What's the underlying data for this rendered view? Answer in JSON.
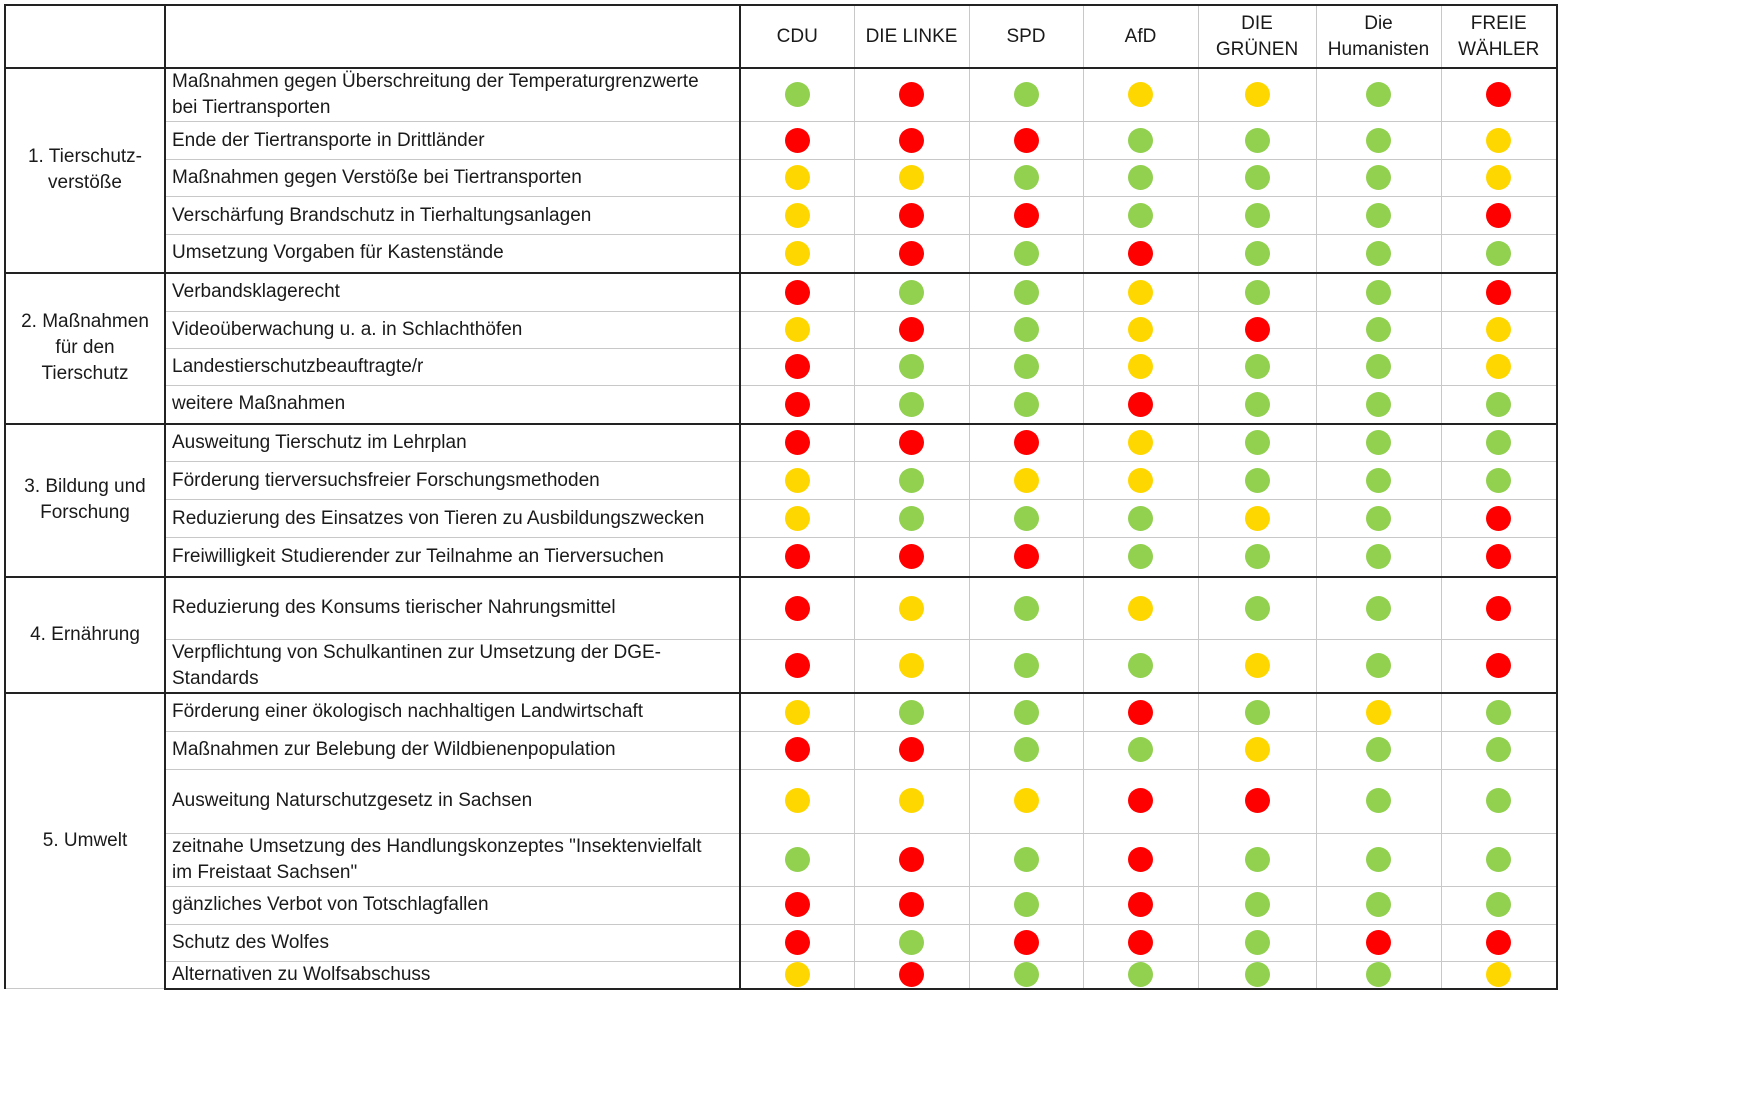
{
  "colors": {
    "green": "#92d050",
    "yellow": "#ffd700",
    "red": "#ff0000"
  },
  "parties": [
    {
      "label": "CDU",
      "label2": ""
    },
    {
      "label": "DIE LINKE",
      "label2": ""
    },
    {
      "label": "SPD",
      "label2": ""
    },
    {
      "label": "AfD",
      "label2": ""
    },
    {
      "label": "DIE GRÜNEN",
      "label2": ""
    },
    {
      "label": "Die",
      "label2": "Humanisten"
    },
    {
      "label": "FREIE",
      "label2": "WÄHLER"
    }
  ],
  "groups": [
    {
      "label": "1. Tierschutz-",
      "label2": "verstöße",
      "label3": "",
      "items": [
        {
          "text": "Maßnahmen gegen Überschreitung der Temperaturgrenzwerte",
          "text2": "bei Tiertransporten",
          "ratings": [
            "green",
            "red",
            "green",
            "yellow",
            "yellow",
            "green",
            "red"
          ]
        },
        {
          "text": "Ende der Tiertransporte in Drittländer",
          "text2": "",
          "ratings": [
            "red",
            "red",
            "red",
            "green",
            "green",
            "green",
            "yellow"
          ]
        },
        {
          "text": "Maßnahmen gegen Verstöße bei Tiertransporten",
          "text2": "",
          "ratings": [
            "yellow",
            "yellow",
            "green",
            "green",
            "green",
            "green",
            "yellow"
          ]
        },
        {
          "text": "Verschärfung Brandschutz in Tierhaltungsanlagen",
          "text2": "",
          "ratings": [
            "yellow",
            "red",
            "red",
            "green",
            "green",
            "green",
            "red"
          ]
        },
        {
          "text": "Umsetzung Vorgaben für Kastenstände",
          "text2": "",
          "ratings": [
            "yellow",
            "red",
            "green",
            "red",
            "green",
            "green",
            "green"
          ]
        }
      ]
    },
    {
      "label": "2. Maßnahmen",
      "label2": "für den",
      "label3": "Tierschutz",
      "items": [
        {
          "text": "Verbandsklagerecht",
          "text2": "",
          "ratings": [
            "red",
            "green",
            "green",
            "yellow",
            "green",
            "green",
            "red"
          ]
        },
        {
          "text": "Videoüberwachung u. a. in Schlachthöfen",
          "text2": "",
          "ratings": [
            "yellow",
            "red",
            "green",
            "yellow",
            "red",
            "green",
            "yellow"
          ]
        },
        {
          "text": "Landestierschutzbeauftragte/r",
          "text2": "",
          "ratings": [
            "red",
            "green",
            "green",
            "yellow",
            "green",
            "green",
            "yellow"
          ]
        },
        {
          "text": "weitere Maßnahmen",
          "text2": "",
          "ratings": [
            "red",
            "green",
            "green",
            "red",
            "green",
            "green",
            "green"
          ]
        }
      ]
    },
    {
      "label": "3. Bildung und",
      "label2": "Forschung",
      "label3": "",
      "items": [
        {
          "text": "Ausweitung Tierschutz im Lehrplan",
          "text2": "",
          "ratings": [
            "red",
            "red",
            "red",
            "yellow",
            "green",
            "green",
            "green"
          ]
        },
        {
          "text": "Förderung tierversuchsfreier Forschungsmethoden",
          "text2": "",
          "ratings": [
            "yellow",
            "green",
            "yellow",
            "yellow",
            "green",
            "green",
            "green"
          ]
        },
        {
          "text": "Reduzierung des Einsatzes von Tieren zu Ausbildungszwecken",
          "text2": "",
          "ratings": [
            "yellow",
            "green",
            "green",
            "green",
            "yellow",
            "green",
            "red"
          ]
        },
        {
          "text": "Freiwilligkeit Studierender zur Teilnahme an Tierversuchen",
          "text2": "",
          "ratings": [
            "red",
            "red",
            "red",
            "green",
            "green",
            "green",
            "red"
          ]
        }
      ]
    },
    {
      "label": "4. Ernährung",
      "label2": "",
      "label3": "",
      "items": [
        {
          "text": "Reduzierung des Konsums tierischer Nahrungsmittel",
          "text2": "",
          "ratings": [
            "red",
            "yellow",
            "green",
            "yellow",
            "green",
            "green",
            "red"
          ]
        },
        {
          "text": "Verpflichtung von Schulkantinen zur Umsetzung der DGE-",
          "text2": "Standards",
          "ratings": [
            "red",
            "yellow",
            "green",
            "green",
            "yellow",
            "green",
            "red"
          ]
        }
      ]
    },
    {
      "label": "5. Umwelt",
      "label2": "",
      "label3": "",
      "items": [
        {
          "text": "Förderung einer ökologisch nachhaltigen Landwirtschaft",
          "text2": "",
          "ratings": [
            "yellow",
            "green",
            "green",
            "red",
            "green",
            "yellow",
            "green"
          ]
        },
        {
          "text": "Maßnahmen zur Belebung der Wildbienenpopulation",
          "text2": "",
          "ratings": [
            "red",
            "red",
            "green",
            "green",
            "yellow",
            "green",
            "green"
          ]
        },
        {
          "text": "Ausweitung Naturschutzgesetz in Sachsen",
          "text2": "",
          "ratings": [
            "yellow",
            "yellow",
            "yellow",
            "red",
            "red",
            "green",
            "green"
          ]
        },
        {
          "text": "zeitnahe Umsetzung des Handlungskonzeptes \"Insektenvielfalt",
          "text2": "im Freistaat Sachsen\"",
          "ratings": [
            "green",
            "red",
            "green",
            "red",
            "green",
            "green",
            "green"
          ]
        },
        {
          "text": "gänzliches Verbot von Totschlagfallen",
          "text2": "",
          "ratings": [
            "red",
            "red",
            "green",
            "red",
            "green",
            "green",
            "green"
          ]
        },
        {
          "text": "Schutz des Wolfes",
          "text2": "",
          "ratings": [
            "red",
            "green",
            "red",
            "red",
            "green",
            "red",
            "red"
          ]
        },
        {
          "text": "Alternativen zu Wolfsabschuss",
          "text2": "",
          "ratings": [
            "yellow",
            "red",
            "green",
            "green",
            "green",
            "green",
            "yellow"
          ]
        }
      ]
    }
  ]
}
